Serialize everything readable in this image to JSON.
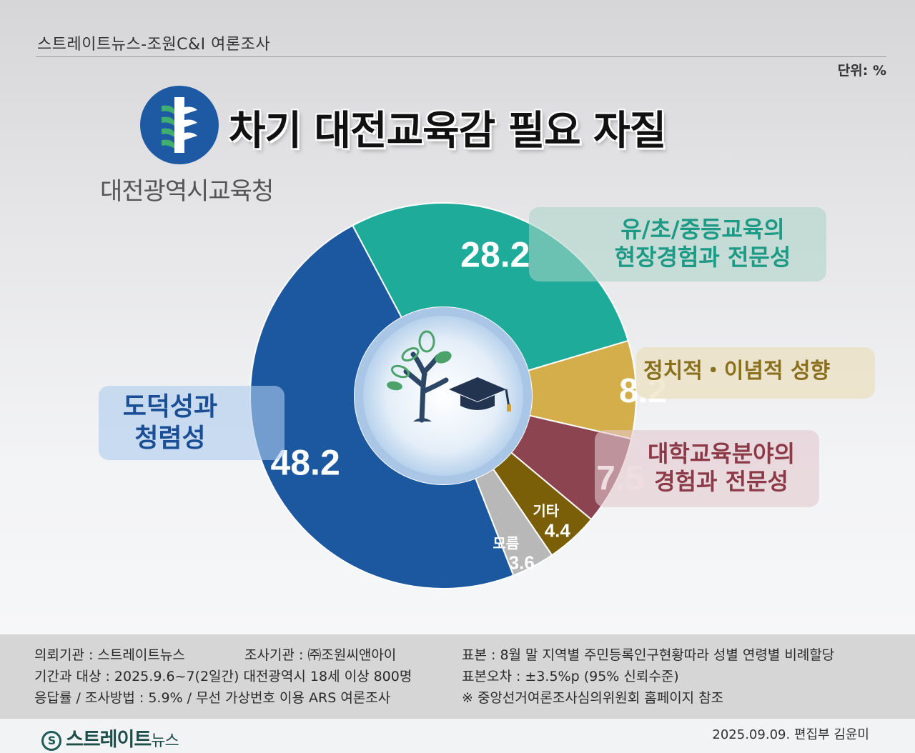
{
  "header": {
    "source_line": "스트레이트뉴스-조원C&I 여론조사",
    "unit": "단위: %",
    "title": "차기 대전교육감 필요 자질",
    "logo_text": "대전광역시교육청"
  },
  "colors": {
    "morality": "#1b58a0",
    "field_experience": "#1fab9a",
    "political": "#d4ae4a",
    "university": "#8b4450",
    "other": "#7a5e08",
    "unknown": "#b8b8b8"
  },
  "chart_data": {
    "type": "pie",
    "variant": "donut",
    "unit": "%",
    "slices": [
      {
        "label_lines": [
          "유/초/중등교육의",
          "현장경험과 전문성"
        ],
        "value": 28.2,
        "value_label": "28.2",
        "color": "#1fab9a"
      },
      {
        "label_lines": [
          "정치적・이념적 성향"
        ],
        "value": 8.2,
        "value_label": "8.2",
        "color": "#d4ae4a"
      },
      {
        "label_lines": [
          "대학교육분야의",
          "경험과 전문성"
        ],
        "value": 7.5,
        "value_label": "7.5",
        "color": "#8b4450"
      },
      {
        "label_lines": [
          "기타"
        ],
        "value": 4.4,
        "value_label": "4.4",
        "color": "#7a5e08"
      },
      {
        "label_lines": [
          "모름"
        ],
        "value": 3.6,
        "value_label": "3.6",
        "color": "#b8b8b8"
      },
      {
        "label_lines": [
          "도덕성과",
          "청렴성"
        ],
        "value": 48.2,
        "value_label": "48.2",
        "color": "#1b58a0"
      }
    ]
  },
  "footer": {
    "left": [
      "의뢰기관 : 스트레이트뉴스",
      "기간과 대상 : 2025.9.6~7(2일간) 대전광역시  18세 이상 800명",
      "응답률 / 조사방법 : 5.9% / 무선 가상번호 이용 ARS 여론조사"
    ],
    "middle": [
      "조사기관 : ㈜조원씨앤아이"
    ],
    "right": [
      "표본 : 8월 말 지역별 주민등록인구현황따라 성별 연령별 비례할당",
      "표본오차 : ±3.5%p (95% 신뢰수준)",
      "※ 중앙선거여론조사심의위원회 홈페이지 참조"
    ],
    "brand": "스트레이트",
    "brand_small": "뉴스",
    "date_editor": "2025.09.09. 편집부 김윤미"
  }
}
